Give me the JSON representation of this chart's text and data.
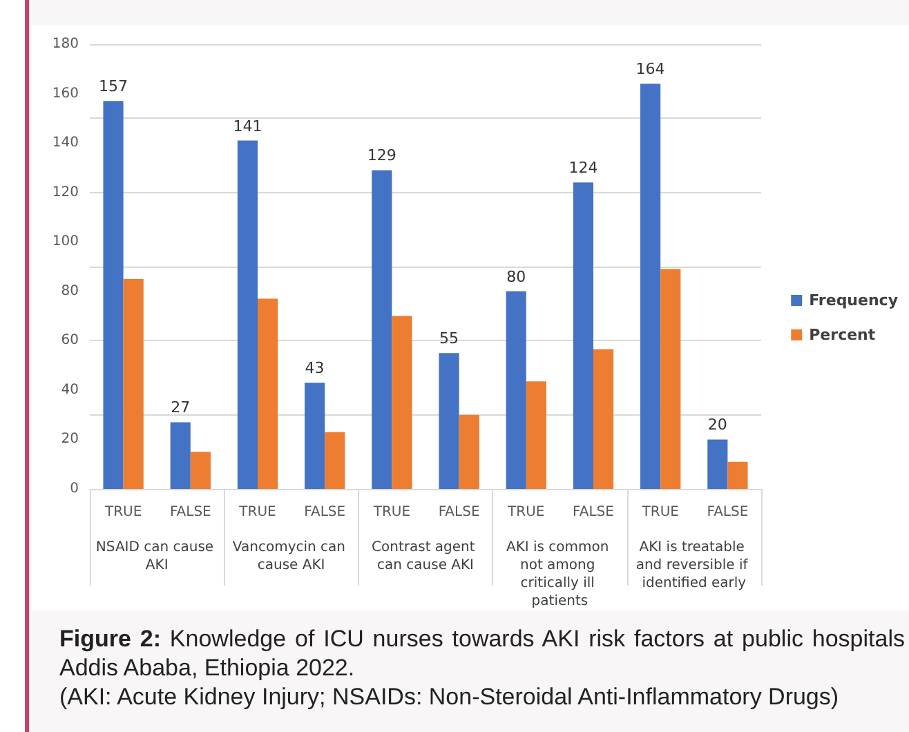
{
  "chart_data": {
    "type": "bar",
    "title": "Figure 2: Knowledge of ICU nurses towards AKI risk factors at public hospitals Addis Ababa, Ethiopia 2022.",
    "subtitle": "(AKI: Acute Kidney Injury; NSAIDs: Non-Steroidal Anti-Inflammatory Drugs)",
    "categories": [
      "TRUE",
      "FALSE",
      "TRUE",
      "FALSE",
      "TRUE",
      "FALSE",
      "TRUE",
      "FALSE",
      "TRUE",
      "FALSE"
    ],
    "annotations": [
      "NSAID can cause AKI",
      "Vancomycin can cause AKI",
      "Contrast agent can cause AKI",
      "AKI is common not among critically ill patients",
      "AKI is treatable and reversible if identified early"
    ],
    "series": [
      {
        "name": "Frequency",
        "color": "#4472c4",
        "values": [
          157,
          27,
          141,
          43,
          129,
          55,
          80,
          124,
          164,
          20
        ],
        "value_labels": [
          "157",
          "27",
          "141",
          "43",
          "129",
          "55",
          "80",
          "124",
          "164",
          "20"
        ]
      },
      {
        "name": "Percent",
        "color": "#ed7d31",
        "values": [
          85,
          15,
          77,
          23,
          70,
          30,
          43.5,
          56.5,
          89,
          11
        ]
      }
    ],
    "ylim": [
      0,
      180
    ],
    "yticks": [
      0,
      20,
      40,
      60,
      80,
      100,
      120,
      140,
      160,
      180
    ],
    "grid": "y",
    "legend": "right"
  }
}
